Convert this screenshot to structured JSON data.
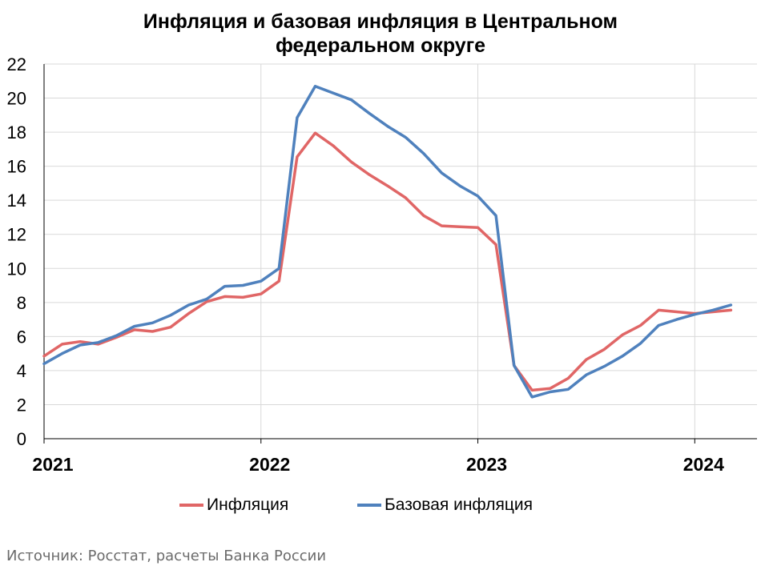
{
  "chart_data": {
    "type": "line",
    "title_line1": "Инфляция и базовая инфляция в Центральном",
    "title_line2": "федеральном округе",
    "x_tick_labels": [
      "2021",
      "2022",
      "2023",
      "2024"
    ],
    "x_tick_positions": [
      0,
      12,
      24,
      36
    ],
    "y_ticks": [
      0,
      2,
      4,
      6,
      8,
      10,
      12,
      14,
      16,
      18,
      20,
      22
    ],
    "ylim": [
      0,
      22
    ],
    "xlim": [
      0,
      39
    ],
    "grid": true,
    "legend_position": "bottom",
    "series": [
      {
        "name": "Инфляция",
        "color": "#e06666",
        "values": [
          4.85,
          5.55,
          5.7,
          5.55,
          5.95,
          6.4,
          6.3,
          6.55,
          7.35,
          8.05,
          8.35,
          8.3,
          8.5,
          9.25,
          16.55,
          17.95,
          17.2,
          16.25,
          15.5,
          14.85,
          14.15,
          13.1,
          12.5,
          12.45,
          12.4,
          11.4,
          4.3,
          2.85,
          2.95,
          3.55,
          4.65,
          5.25,
          6.1,
          6.65,
          7.55,
          7.45,
          7.35,
          7.45,
          7.55
        ],
        "x": [
          0,
          1,
          2,
          3,
          4,
          5,
          6,
          7,
          8,
          9,
          10,
          11,
          12,
          13,
          14,
          15,
          16,
          17,
          18,
          19,
          20,
          21,
          22,
          23,
          24,
          25,
          26,
          27,
          28,
          29,
          30,
          31,
          32,
          33,
          34,
          35,
          36,
          37,
          38
        ]
      },
      {
        "name": "Базовая инфляция",
        "color": "#4f81bd",
        "values": [
          4.4,
          5.0,
          5.5,
          5.65,
          6.05,
          6.6,
          6.8,
          7.25,
          7.85,
          8.2,
          8.95,
          9.0,
          9.25,
          10.0,
          18.85,
          20.7,
          20.3,
          19.9,
          19.1,
          18.35,
          17.7,
          16.75,
          15.6,
          14.85,
          14.25,
          13.1,
          4.3,
          2.45,
          2.75,
          2.9,
          3.75,
          4.25,
          4.85,
          5.6,
          6.65,
          7.0,
          7.3,
          7.55,
          7.85
        ],
        "x": [
          0,
          1,
          2,
          3,
          4,
          5,
          6,
          7,
          8,
          9,
          10,
          11,
          12,
          13,
          14,
          15,
          16,
          17,
          18,
          19,
          20,
          21,
          22,
          23,
          24,
          25,
          26,
          27,
          28,
          29,
          30,
          31,
          32,
          33,
          34,
          35,
          36,
          37,
          38
        ]
      }
    ]
  },
  "source_text": "Источник: Росстат, расчеты Банка России"
}
